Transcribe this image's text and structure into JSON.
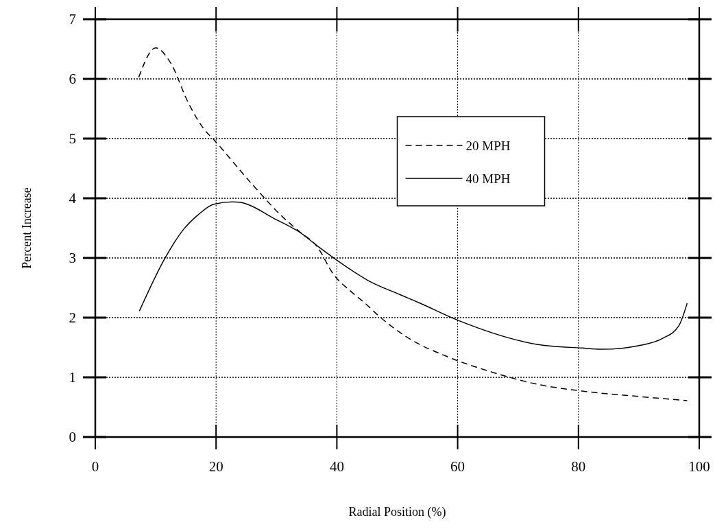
{
  "chart_data": {
    "type": "line",
    "xlabel": "Radial Position (%)",
    "ylabel": "Percent Increase",
    "xlim": [
      0,
      100
    ],
    "xticks": [
      0,
      20,
      40,
      60,
      80,
      100
    ],
    "ylim": [
      0,
      7
    ],
    "yticks": [
      0,
      1,
      2,
      3,
      4,
      5,
      6,
      7
    ],
    "grid": true,
    "legend": "top right",
    "series": [
      {
        "name": "20 MPH",
        "color": "#000000",
        "line_style": "dashed",
        "x": [
          7.2,
          10,
          12.4,
          15.4,
          17.7,
          20,
          26.1,
          31.1,
          33.7,
          36.8,
          39.4,
          42.2,
          44.8,
          46.7,
          51.5,
          58.7,
          65.6,
          72.9,
          80.6,
          89.9,
          98
        ],
        "values": [
          6.03,
          6.52,
          6.28,
          5.6,
          5.2,
          4.94,
          4.22,
          3.68,
          3.45,
          3.18,
          2.73,
          2.45,
          2.23,
          2.05,
          1.68,
          1.33,
          1.09,
          0.89,
          0.77,
          0.68,
          0.61
        ]
      },
      {
        "name": "40 MPH",
        "color": "#000000",
        "line_style": "solid",
        "x": [
          7.3,
          11.4,
          14.7,
          17,
          19.6,
          22.7,
          24,
          30,
          33.7,
          36.8,
          39.9,
          45.2,
          50.6,
          53.6,
          60.2,
          73.3,
          80.6,
          83.8,
          89.9,
          93.9,
          96.6,
          98
        ],
        "values": [
          2.11,
          2.97,
          3.49,
          3.72,
          3.9,
          3.94,
          3.93,
          3.64,
          3.44,
          3.2,
          2.97,
          2.62,
          2.38,
          2.25,
          1.95,
          1.55,
          1.49,
          1.47,
          1.53,
          1.65,
          1.86,
          2.24
        ]
      }
    ]
  }
}
